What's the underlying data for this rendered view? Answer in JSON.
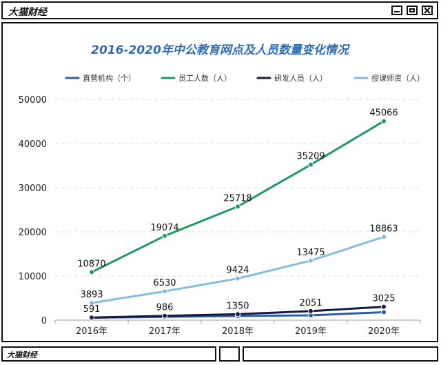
{
  "window": {
    "brand": "大猫财经",
    "footer_brand": "大猫财经"
  },
  "chart_data": {
    "type": "line",
    "title": "2016-2020年中公教育网点及人员数量变化情况",
    "categories": [
      "2016年",
      "2017年",
      "2018年",
      "2019年",
      "2020年"
    ],
    "ylim": [
      0,
      50000
    ],
    "yticks": [
      0,
      10000,
      20000,
      30000,
      40000,
      50000
    ],
    "grid": true,
    "legend_position": "top",
    "series": [
      {
        "name": "直营机构（个）",
        "color": "#2a5ca8",
        "values": [
          540,
          750,
          930,
          1100,
          1800
        ],
        "labels": []
      },
      {
        "name": "员工人数（人）",
        "color": "#1e9a63",
        "values": [
          10870,
          19074,
          25718,
          35209,
          45066
        ],
        "labels": [
          "10870",
          "19074",
          "25718",
          "35209",
          "45066"
        ]
      },
      {
        "name": "研发人员（人）",
        "color": "#141b3d",
        "values": [
          591,
          986,
          1350,
          2051,
          3025
        ],
        "labels": [
          "591",
          "986",
          "1350",
          "2051",
          "3025"
        ]
      },
      {
        "name": "授课师资（人）",
        "color": "#86bcd8",
        "values": [
          3893,
          6530,
          9424,
          13475,
          18863
        ],
        "labels": [
          "3893",
          "6530",
          "9424",
          "13475",
          "18863"
        ]
      }
    ]
  }
}
